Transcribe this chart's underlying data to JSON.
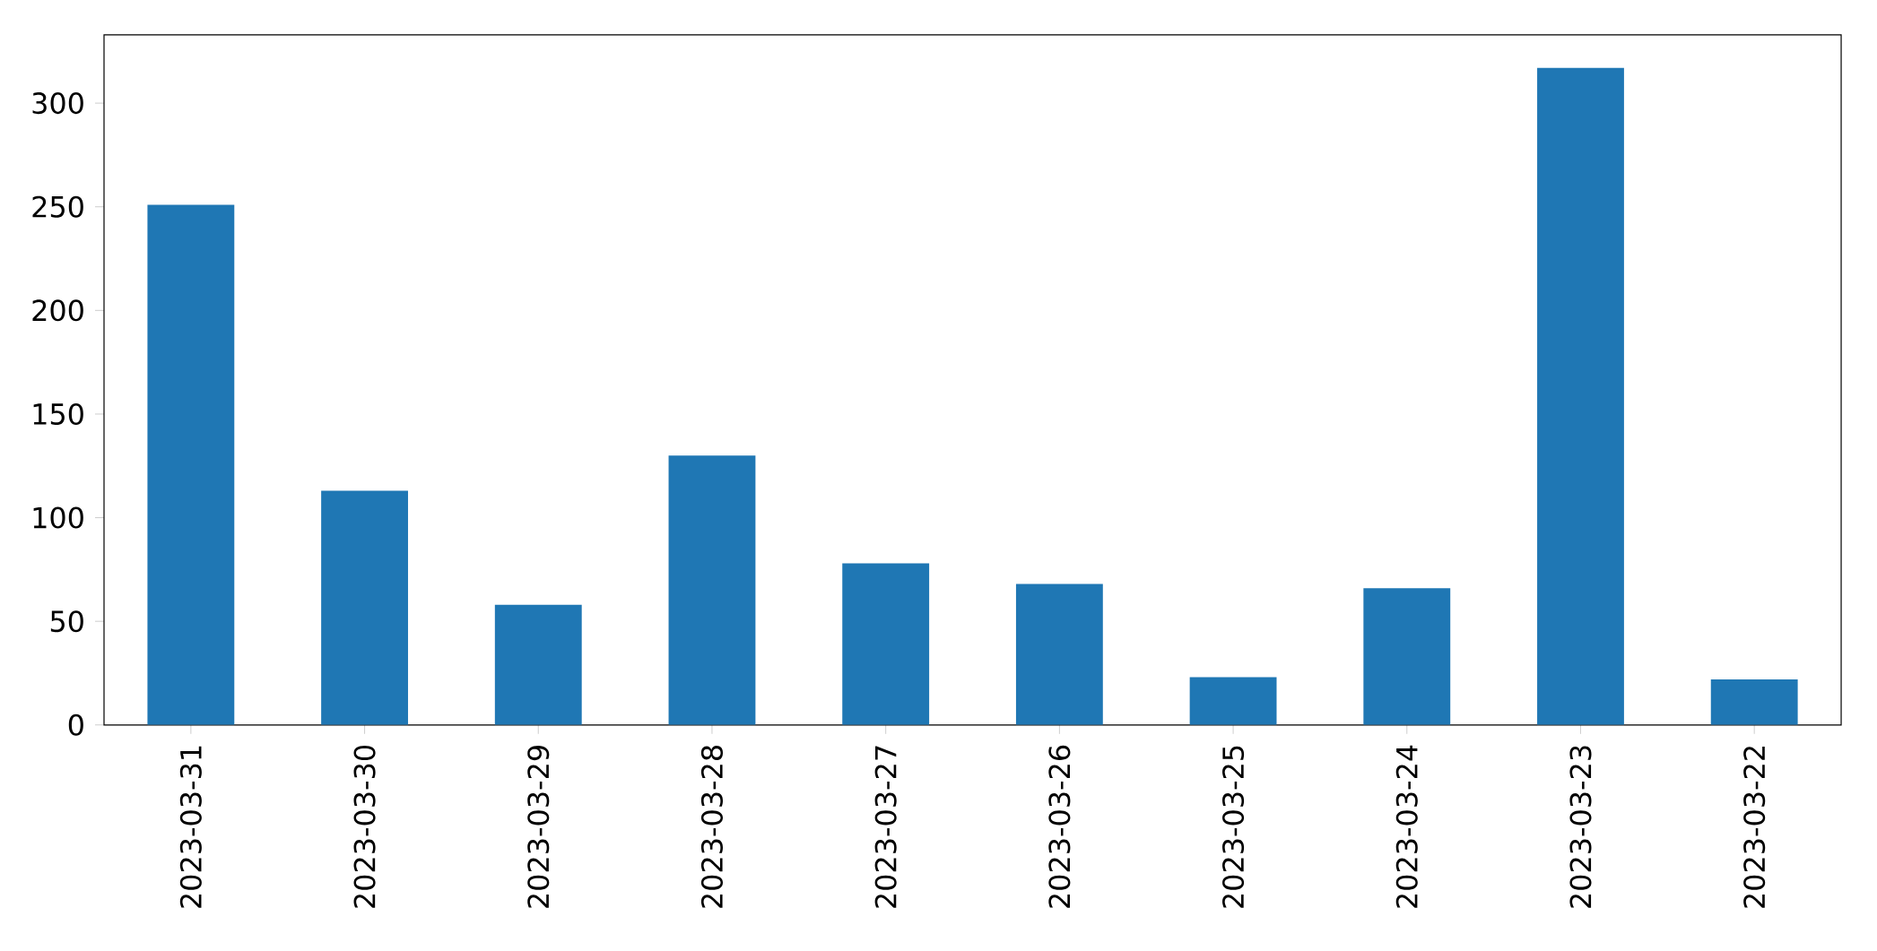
{
  "chart_data": {
    "type": "bar",
    "categories": [
      "2023-03-31",
      "2023-03-30",
      "2023-03-29",
      "2023-03-28",
      "2023-03-27",
      "2023-03-26",
      "2023-03-25",
      "2023-03-24",
      "2023-03-23",
      "2023-03-22"
    ],
    "values": [
      251,
      113,
      58,
      130,
      78,
      68,
      23,
      66,
      317,
      22
    ],
    "color": "#1f77b4",
    "ylim": [
      0,
      333
    ],
    "yticks": [
      0,
      50,
      100,
      150,
      200,
      250,
      300
    ]
  }
}
